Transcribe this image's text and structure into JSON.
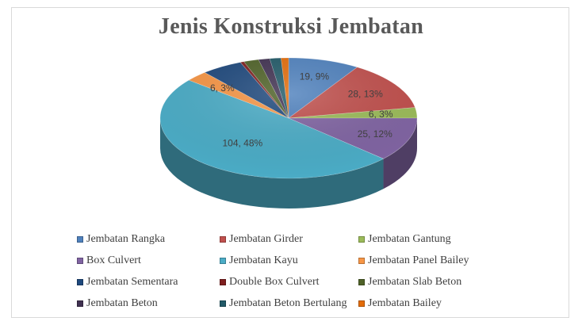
{
  "chart_data": {
    "type": "pie",
    "title": "Jenis Konstruksi Jembatan",
    "categories": [
      "Jembatan Rangka",
      "Jembatan Girder",
      "Jembatan Gantung",
      "Box Culvert",
      "Jembatan Kayu",
      "Jembatan Panel Bailey",
      "Jembatan Sementara",
      "Double Box Culvert",
      "Jembatan Slab Beton",
      "Jembatan Beton",
      "Jembatan Beton Bertulang",
      "Jembatan Bailey"
    ],
    "values": [
      19,
      28,
      6,
      25,
      104,
      6,
      11,
      1,
      4,
      3,
      3,
      2
    ],
    "percents": [
      9,
      13,
      3,
      12,
      48,
      3,
      5,
      0,
      2,
      1,
      1,
      1
    ],
    "data_labels": [
      "19, 9%",
      "28, 13%",
      "6, 3%",
      "25, 12%",
      "104, 48%",
      "6, 3%",
      "",
      "",
      "",
      "",
      "",
      ""
    ],
    "colors": [
      "#4f81bd",
      "#c0504d",
      "#9bbb59",
      "#8064a2",
      "#4bacc6",
      "#f79646",
      "#1f497d",
      "#7f1f1f",
      "#4f6228",
      "#403151",
      "#215967",
      "#e36c09"
    ],
    "legend_position": "bottom",
    "three_d": true
  }
}
